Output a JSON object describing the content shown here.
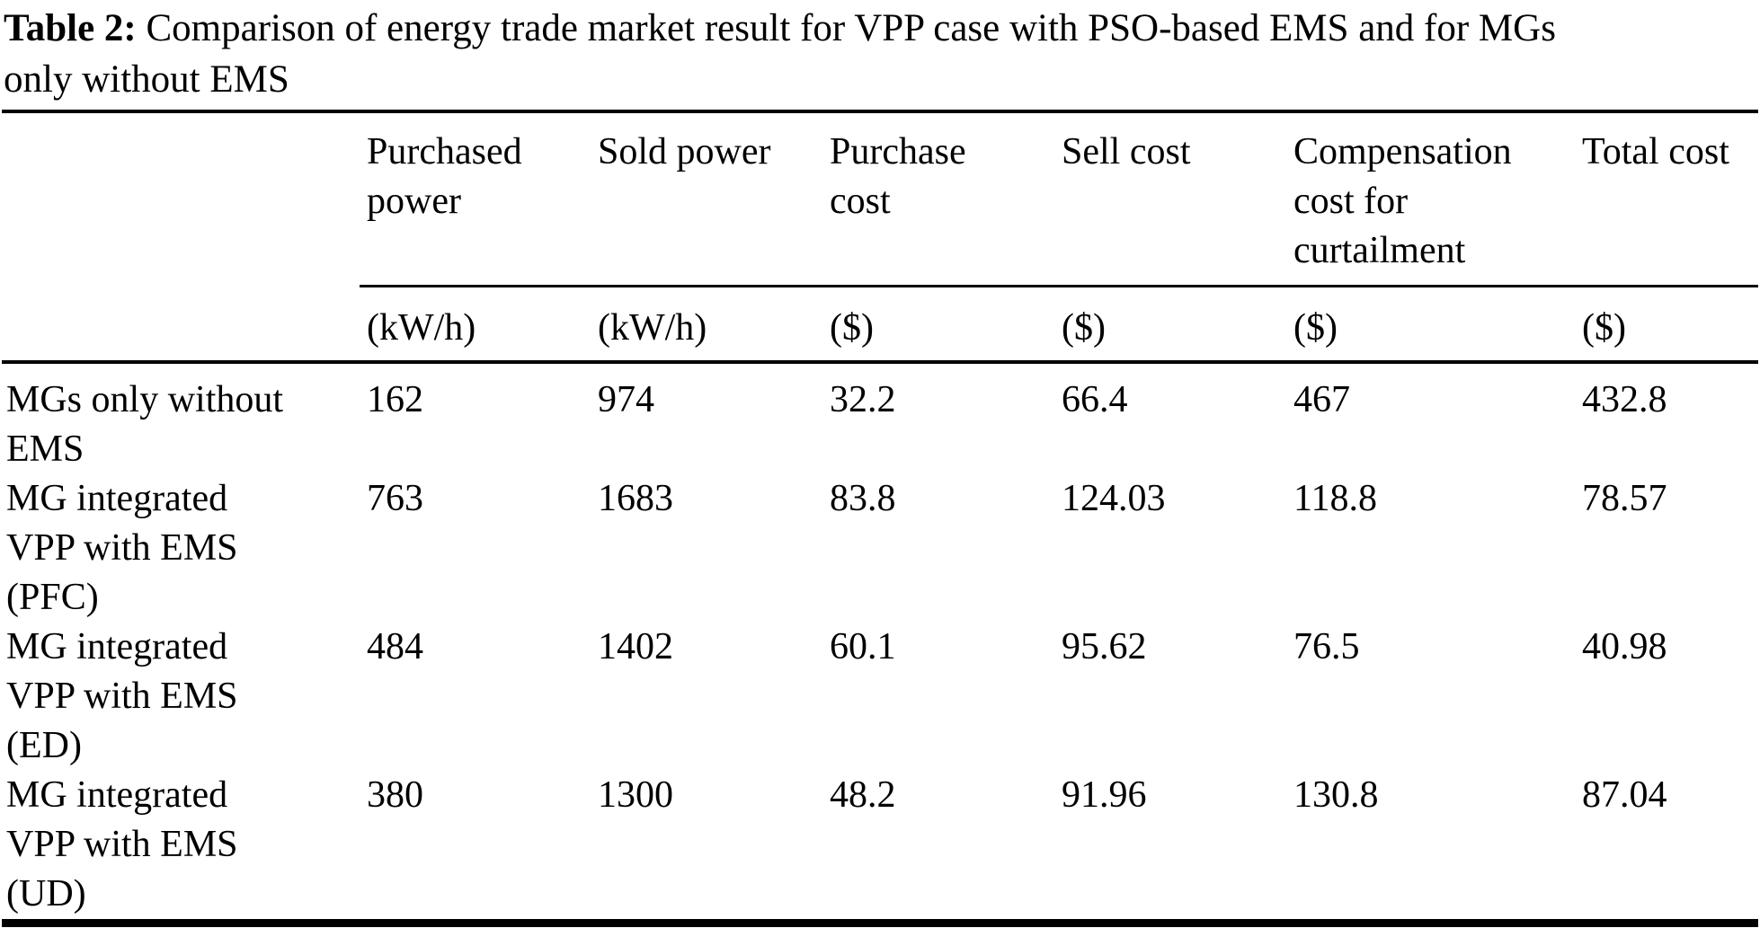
{
  "caption": {
    "label_bold": "Table 2:",
    "line1_rest": " Comparison of energy trade market result for VPP case with PSO-based EMS and for MGs",
    "line2": "only without EMS"
  },
  "table": {
    "columns": [
      {
        "label": "Purchased power",
        "lines": [
          "Purchased",
          "power"
        ],
        "unit": "(kW/h)"
      },
      {
        "label": "Sold power",
        "lines": [
          "Sold power"
        ],
        "unit": "(kW/h)"
      },
      {
        "label": "Purchase cost",
        "lines": [
          "Purchase",
          "cost"
        ],
        "unit": "($)"
      },
      {
        "label": "Sell cost",
        "lines": [
          "Sell cost"
        ],
        "unit": "($)"
      },
      {
        "label": "Compensation cost for curtailment",
        "lines": [
          "Compensation",
          "cost for",
          "curtailment"
        ],
        "unit": "($)"
      },
      {
        "label": "Total cost",
        "lines": [
          "Total cost"
        ],
        "unit": "($)"
      }
    ],
    "rows": [
      {
        "label": "MGs only without EMS",
        "label_lines": [
          "MGs only without",
          "EMS"
        ],
        "values": [
          "162",
          "974",
          "32.2",
          "66.4",
          "467",
          "432.8"
        ]
      },
      {
        "label": "MG integrated VPP with EMS (PFC)",
        "label_lines": [
          "MG integrated",
          "VPP with EMS",
          "(PFC)"
        ],
        "values": [
          "763",
          "1683",
          "83.8",
          "124.03",
          "118.8",
          "78.57"
        ]
      },
      {
        "label": "MG integrated VPP with EMS (ED)",
        "label_lines": [
          "MG integrated",
          "VPP with EMS",
          "(ED)"
        ],
        "values": [
          "484",
          "1402",
          "60.1",
          "95.62",
          "76.5",
          "40.98"
        ]
      },
      {
        "label": "MG integrated VPP with EMS (UD)",
        "label_lines": [
          "MG integrated",
          "VPP with EMS",
          "(UD)"
        ],
        "values": [
          "380",
          "1300",
          "48.2",
          "91.96",
          "130.8",
          "87.04"
        ]
      }
    ]
  },
  "colors": {
    "text": "#000000",
    "background": "#ffffff",
    "rule": "#000000"
  }
}
